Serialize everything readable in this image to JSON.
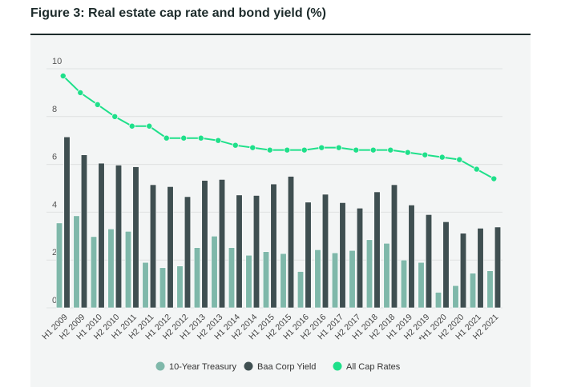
{
  "chart_data": {
    "type": "bar",
    "title": "Figure 3: Real estate cap rate and bond yield (%)",
    "xlabel": "",
    "ylabel": "",
    "ylim": [
      0,
      10
    ],
    "yticks": [
      "0",
      "2",
      "4",
      "6",
      "8",
      "10"
    ],
    "grid": true,
    "legend_placement": "bottom",
    "categories": [
      "H1 2009",
      "H2 2009",
      "H1 2010",
      "H2 2010",
      "H1 2011",
      "H2 2011",
      "H1 2012",
      "H2 2012",
      "H1 2013",
      "H2 2013",
      "H1 2014",
      "H2 2014",
      "H1 2015",
      "H2 2015",
      "H1 2016",
      "H2 2016",
      "H1 2017",
      "H2 2017",
      "H1 2018",
      "H2 2018",
      "H1 2019",
      "H2 2019",
      "*H1 2020",
      "H2 2020",
      "H1 2021",
      "H2 2021"
    ],
    "series": [
      {
        "name": "10-Year Treasury",
        "type": "bar",
        "color": "#7fb8aa",
        "values": [
          3.55,
          3.85,
          2.98,
          3.3,
          3.2,
          1.9,
          1.68,
          1.75,
          2.52,
          3.0,
          2.52,
          2.2,
          2.35,
          2.27,
          1.52,
          2.43,
          2.3,
          2.4,
          2.85,
          2.7,
          2.0,
          1.9,
          0.65,
          0.93,
          1.45,
          1.55
        ]
      },
      {
        "name": "Baa Corp Yield",
        "type": "bar",
        "color": "#3f4f51",
        "values": [
          7.15,
          6.4,
          6.05,
          5.97,
          5.9,
          5.15,
          5.07,
          4.65,
          5.33,
          5.37,
          4.72,
          4.7,
          5.18,
          5.5,
          4.42,
          4.75,
          4.4,
          4.17,
          4.85,
          5.15,
          4.3,
          3.9,
          3.6,
          3.12,
          3.33,
          3.38
        ]
      },
      {
        "name": "All Cap Rates",
        "type": "line",
        "color": "#1ee08a",
        "values": [
          9.7,
          9.0,
          8.5,
          8.0,
          7.6,
          7.6,
          7.1,
          7.1,
          7.1,
          7.0,
          6.8,
          6.7,
          6.6,
          6.6,
          6.6,
          6.7,
          6.7,
          6.6,
          6.6,
          6.6,
          6.5,
          6.4,
          6.3,
          6.2,
          5.8,
          5.4
        ]
      }
    ]
  }
}
